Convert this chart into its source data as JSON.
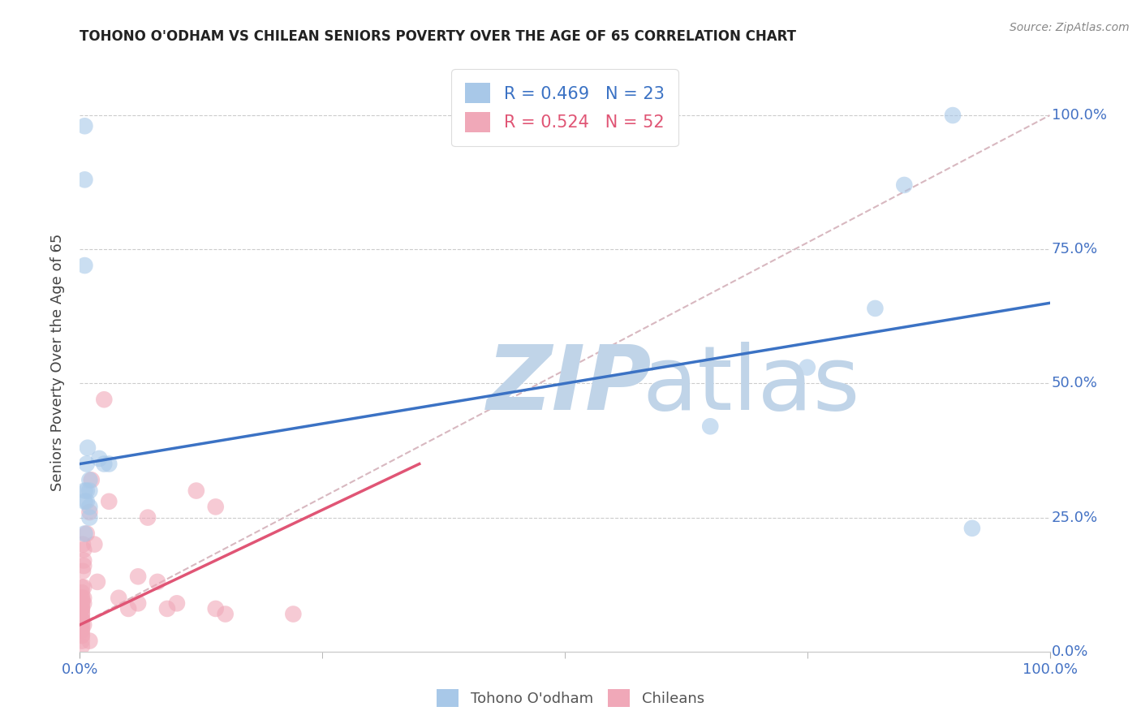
{
  "title": "TOHONO O'ODHAM VS CHILEAN SENIORS POVERTY OVER THE AGE OF 65 CORRELATION CHART",
  "source": "Source: ZipAtlas.com",
  "ylabel": "Seniors Poverty Over the Age of 65",
  "legend_blue_label": "Tohono O'odham",
  "legend_pink_label": "Chileans",
  "legend_blue_r": "R = 0.469",
  "legend_blue_n": "N = 23",
  "legend_pink_r": "R = 0.524",
  "legend_pink_n": "N = 52",
  "blue_color": "#A8C8E8",
  "pink_color": "#F0A8B8",
  "blue_line_color": "#3B72C4",
  "pink_line_color": "#E05575",
  "dashed_line_color": "#D8B8C0",
  "tick_label_color": "#4472C4",
  "watermark_zip_color": "#C0D4E8",
  "watermark_atlas_color": "#C0D4E8",
  "blue_scatter_x": [
    0.005,
    0.005,
    0.005,
    0.005,
    0.005,
    0.007,
    0.007,
    0.008,
    0.01,
    0.01,
    0.01,
    0.01,
    0.02,
    0.025,
    0.03,
    0.65,
    0.75,
    0.82,
    0.85,
    0.9,
    0.92,
    0.005,
    0.007
  ],
  "blue_scatter_y": [
    0.98,
    0.88,
    0.3,
    0.28,
    0.22,
    0.3,
    0.28,
    0.38,
    0.32,
    0.3,
    0.27,
    0.25,
    0.36,
    0.35,
    0.35,
    0.42,
    0.53,
    0.64,
    0.87,
    1.0,
    0.23,
    0.72,
    0.35
  ],
  "pink_scatter_x": [
    0.002,
    0.002,
    0.002,
    0.002,
    0.002,
    0.002,
    0.002,
    0.002,
    0.002,
    0.002,
    0.002,
    0.002,
    0.002,
    0.002,
    0.002,
    0.002,
    0.002,
    0.002,
    0.002,
    0.002,
    0.002,
    0.002,
    0.003,
    0.003,
    0.004,
    0.004,
    0.004,
    0.004,
    0.004,
    0.004,
    0.004,
    0.007,
    0.01,
    0.012,
    0.015,
    0.018,
    0.025,
    0.03,
    0.04,
    0.05,
    0.06,
    0.06,
    0.07,
    0.08,
    0.09,
    0.1,
    0.12,
    0.14,
    0.14,
    0.15,
    0.22,
    0.01
  ],
  "pink_scatter_y": [
    0.12,
    0.11,
    0.1,
    0.1,
    0.09,
    0.09,
    0.08,
    0.08,
    0.08,
    0.07,
    0.07,
    0.06,
    0.06,
    0.06,
    0.05,
    0.05,
    0.04,
    0.04,
    0.03,
    0.03,
    0.02,
    0.01,
    0.15,
    0.2,
    0.19,
    0.17,
    0.16,
    0.12,
    0.1,
    0.09,
    0.05,
    0.22,
    0.26,
    0.32,
    0.2,
    0.13,
    0.47,
    0.28,
    0.1,
    0.08,
    0.09,
    0.14,
    0.25,
    0.13,
    0.08,
    0.09,
    0.3,
    0.27,
    0.08,
    0.07,
    0.07,
    0.02
  ],
  "blue_line_x0": 0.0,
  "blue_line_y0": 0.35,
  "blue_line_x1": 1.0,
  "blue_line_y1": 0.65,
  "pink_line_x0": 0.0,
  "pink_line_y0": 0.05,
  "pink_line_x1": 0.35,
  "pink_line_y1": 0.35,
  "dashed_line_x0": 0.0,
  "dashed_line_y0": 0.05,
  "dashed_line_x1": 1.0,
  "dashed_line_y1": 1.0,
  "xlim": [
    0.0,
    1.0
  ],
  "ylim": [
    0.0,
    1.08
  ],
  "figsize": [
    14.06,
    8.92
  ],
  "dpi": 100
}
